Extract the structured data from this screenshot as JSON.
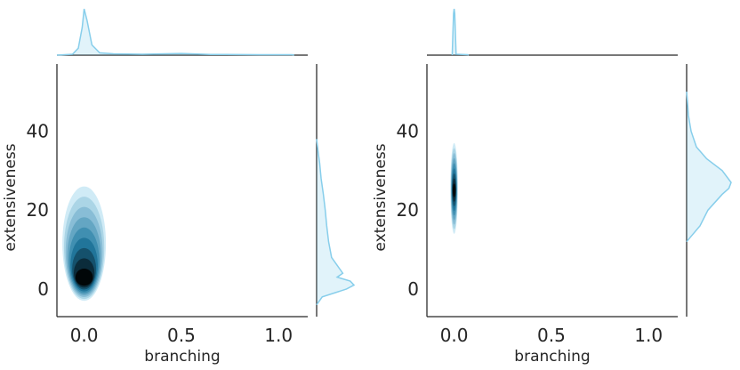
{
  "chart_data": [
    {
      "type": "kde-jointplot",
      "xlabel": "branching",
      "ylabel": "extensiveness",
      "xlim": [
        -0.14,
        1.15
      ],
      "ylim": [
        -7,
        57
      ],
      "xticks": [
        0.0,
        0.5,
        1.0
      ],
      "xtick_labels": [
        "0.0",
        "0.5",
        "1.0"
      ],
      "yticks": [
        0,
        20,
        40
      ],
      "ytick_labels": [
        "0",
        "20",
        "40"
      ],
      "color": "#87ceeb",
      "grid": false,
      "joint_kde": {
        "center_x": 0.0,
        "center_y": 3,
        "spread_x": 0.035,
        "y_extent": [
          -3,
          26
        ],
        "levels": 9
      },
      "marginal_x": {
        "points": [
          [
            -0.14,
            0
          ],
          [
            -0.06,
            0.02
          ],
          [
            -0.03,
            0.15
          ],
          [
            -0.01,
            0.6
          ],
          [
            0.0,
            1.0
          ],
          [
            0.015,
            0.75
          ],
          [
            0.04,
            0.22
          ],
          [
            0.08,
            0.05
          ],
          [
            0.15,
            0.03
          ],
          [
            0.3,
            0.02
          ],
          [
            0.5,
            0.035
          ],
          [
            0.65,
            0.015
          ],
          [
            0.9,
            0.01
          ],
          [
            1.07,
            0.01
          ],
          [
            1.08,
            0
          ]
        ]
      },
      "marginal_y": {
        "points": [
          [
            -4,
            0
          ],
          [
            -2,
            0.15
          ],
          [
            0,
            0.8
          ],
          [
            1,
            1.0
          ],
          [
            2,
            0.9
          ],
          [
            3,
            0.55
          ],
          [
            4,
            0.7
          ],
          [
            6,
            0.55
          ],
          [
            8,
            0.4
          ],
          [
            12,
            0.32
          ],
          [
            16,
            0.27
          ],
          [
            20,
            0.23
          ],
          [
            24,
            0.18
          ],
          [
            28,
            0.12
          ],
          [
            32,
            0.08
          ],
          [
            34,
            0.05
          ],
          [
            38,
            0
          ]
        ]
      }
    },
    {
      "type": "kde-jointplot",
      "xlabel": "branching",
      "ylabel": "extensiveness",
      "xlim": [
        -0.14,
        1.15
      ],
      "ylim": [
        -7,
        57
      ],
      "xticks": [
        0.0,
        0.5,
        1.0
      ],
      "xtick_labels": [
        "0.0",
        "0.5",
        "1.0"
      ],
      "yticks": [
        0,
        20,
        40
      ],
      "ytick_labels": [
        "0",
        "20",
        "40"
      ],
      "color": "#87ceeb",
      "grid": false,
      "joint_kde": {
        "center_x": 0.0,
        "center_y": 25,
        "spread_x": 0.006,
        "y_extent": [
          14,
          37
        ],
        "levels": 9
      },
      "marginal_x": {
        "points": [
          [
            -0.01,
            0
          ],
          [
            -0.003,
            0.9
          ],
          [
            0.0,
            1.0
          ],
          [
            0.003,
            0.9
          ],
          [
            0.01,
            0.02
          ],
          [
            0.07,
            0.01
          ],
          [
            0.075,
            0
          ]
        ]
      },
      "marginal_y": {
        "points": [
          [
            12,
            0
          ],
          [
            14,
            0.15
          ],
          [
            16,
            0.3
          ],
          [
            20,
            0.48
          ],
          [
            24,
            0.8
          ],
          [
            25.5,
            0.95
          ],
          [
            27,
            1.0
          ],
          [
            30,
            0.8
          ],
          [
            33,
            0.45
          ],
          [
            36,
            0.22
          ],
          [
            40,
            0.1
          ],
          [
            44,
            0.04
          ],
          [
            48,
            0.015
          ],
          [
            50,
            0
          ]
        ]
      }
    }
  ]
}
